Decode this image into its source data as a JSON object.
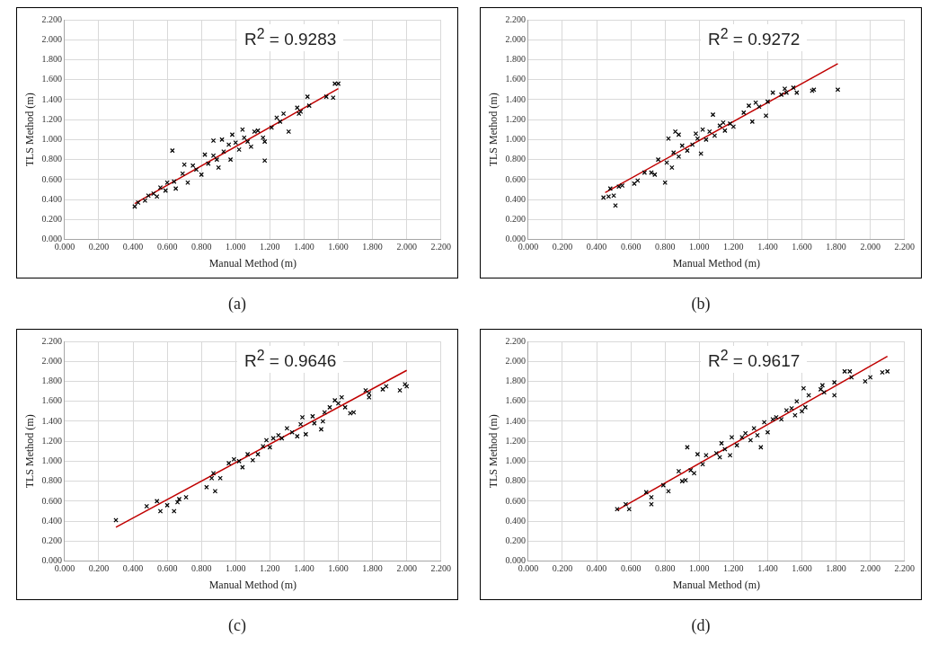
{
  "chart_data": [
    {
      "type": "scatter",
      "xlabel": "Manual Method (m)",
      "ylabel": "TLS Method (m)",
      "marker": "cross",
      "grid": true,
      "xlim": [
        0,
        2.2
      ],
      "ylim": [
        0,
        2.2
      ],
      "xticks": [
        {
          "value": 0,
          "label": "0.000"
        },
        {
          "value": 0.2,
          "label": "0.200"
        },
        {
          "value": 0.4,
          "label": "0.400"
        },
        {
          "value": 0.6,
          "label": "0.600"
        },
        {
          "value": 0.8,
          "label": "0.800"
        },
        {
          "value": 1,
          "label": "1.000"
        },
        {
          "value": 1.2,
          "label": "1.200"
        },
        {
          "value": 1.4,
          "label": "1.400"
        },
        {
          "value": 1.6,
          "label": "1.600"
        },
        {
          "value": 1.8,
          "label": "1.800"
        },
        {
          "value": 2,
          "label": "2.000"
        },
        {
          "value": 2.2,
          "label": "2.200"
        }
      ],
      "yticks": [
        {
          "value": 0,
          "label": "0.000"
        },
        {
          "value": 0.2,
          "label": "0.200"
        },
        {
          "value": 0.4,
          "label": "0.400"
        },
        {
          "value": 0.6,
          "label": "0.600"
        },
        {
          "value": 0.8,
          "label": "0.800"
        },
        {
          "value": 1,
          "label": "1.000"
        },
        {
          "value": 1.2,
          "label": "1.200"
        },
        {
          "value": 1.4,
          "label": "1.400"
        },
        {
          "value": 1.6,
          "label": "1.600"
        },
        {
          "value": 1.8,
          "label": "1.800"
        },
        {
          "value": 2,
          "label": "2.000"
        },
        {
          "value": 2.2,
          "label": "2.200"
        }
      ],
      "annotations": [
        "R$^{2}$ = 0.9283",
        "(a)"
      ],
      "series": [
        {
          "color": "#000000",
          "x": [
            0.41,
            0.43,
            0.47,
            0.49,
            0.52,
            0.54,
            0.56,
            0.59,
            0.6,
            0.63,
            0.64,
            0.65,
            0.69,
            0.7,
            0.72,
            0.75,
            0.77,
            0.8,
            0.82,
            0.84,
            0.87,
            0.87,
            0.89,
            0.9,
            0.92,
            0.93,
            0.96,
            0.97,
            0.98,
            1.0,
            1.02,
            1.04,
            1.05,
            1.07,
            1.09,
            1.11,
            1.13,
            1.16,
            1.17,
            1.17,
            1.21,
            1.24,
            1.26,
            1.28,
            1.31,
            1.36,
            1.37,
            1.38,
            1.42,
            1.43,
            1.53,
            1.57,
            1.58,
            1.6
          ],
          "values": [
            0.33,
            0.37,
            0.39,
            0.44,
            0.46,
            0.43,
            0.52,
            0.49,
            0.57,
            0.89,
            0.58,
            0.51,
            0.66,
            0.75,
            0.57,
            0.74,
            0.7,
            0.65,
            0.85,
            0.76,
            0.99,
            0.84,
            0.8,
            0.72,
            1.0,
            0.88,
            0.95,
            0.8,
            1.05,
            0.97,
            0.9,
            1.1,
            1.02,
            0.98,
            0.93,
            1.08,
            1.09,
            1.02,
            0.79,
            0.98,
            1.12,
            1.22,
            1.18,
            1.26,
            1.08,
            1.32,
            1.26,
            1.28,
            1.43,
            1.34,
            1.43,
            1.42,
            1.56,
            1.56
          ]
        },
        {
          "type": "line",
          "marker": "none",
          "color": "#c00000",
          "x": [
            0.41,
            1.6
          ],
          "values": [
            0.36,
            1.51
          ]
        }
      ]
    },
    {
      "type": "scatter",
      "xlabel": "Manual Method (m)",
      "ylabel": "TLS Method (m)",
      "marker": "cross",
      "grid": true,
      "xlim": [
        0,
        2.2
      ],
      "ylim": [
        0,
        2.2
      ],
      "xticks": [
        {
          "value": 0,
          "label": "0.000"
        },
        {
          "value": 0.2,
          "label": "0.200"
        },
        {
          "value": 0.4,
          "label": "0.400"
        },
        {
          "value": 0.6,
          "label": "0.600"
        },
        {
          "value": 0.8,
          "label": "0.800"
        },
        {
          "value": 1,
          "label": "1.000"
        },
        {
          "value": 1.2,
          "label": "1.200"
        },
        {
          "value": 1.4,
          "label": "1.400"
        },
        {
          "value": 1.6,
          "label": "1.600"
        },
        {
          "value": 1.8,
          "label": "1.800"
        },
        {
          "value": 2,
          "label": "2.000"
        },
        {
          "value": 2.2,
          "label": "2.200"
        }
      ],
      "yticks": [
        {
          "value": 0,
          "label": "0.000"
        },
        {
          "value": 0.2,
          "label": "0.200"
        },
        {
          "value": 0.4,
          "label": "0.400"
        },
        {
          "value": 0.6,
          "label": "0.600"
        },
        {
          "value": 0.8,
          "label": "0.800"
        },
        {
          "value": 1,
          "label": "1.000"
        },
        {
          "value": 1.2,
          "label": "1.200"
        },
        {
          "value": 1.4,
          "label": "1.400"
        },
        {
          "value": 1.6,
          "label": "1.600"
        },
        {
          "value": 1.8,
          "label": "1.800"
        },
        {
          "value": 2,
          "label": "2.000"
        },
        {
          "value": 2.2,
          "label": "2.200"
        }
      ],
      "annotations": [
        "R$^{2}$ = 0.9272",
        "(b)"
      ],
      "series": [
        {
          "color": "#000000",
          "x": [
            0.44,
            0.47,
            0.48,
            0.5,
            0.51,
            0.53,
            0.55,
            0.62,
            0.64,
            0.68,
            0.72,
            0.74,
            0.76,
            0.8,
            0.81,
            0.82,
            0.84,
            0.85,
            0.86,
            0.88,
            0.88,
            0.9,
            0.93,
            0.96,
            0.98,
            0.99,
            1.01,
            1.02,
            1.04,
            1.06,
            1.08,
            1.09,
            1.12,
            1.14,
            1.15,
            1.18,
            1.2,
            1.26,
            1.29,
            1.31,
            1.33,
            1.35,
            1.39,
            1.4,
            1.43,
            1.48,
            1.5,
            1.51,
            1.55,
            1.57,
            1.66,
            1.67,
            1.81
          ],
          "values": [
            0.42,
            0.43,
            0.51,
            0.44,
            0.34,
            0.53,
            0.54,
            0.56,
            0.59,
            0.67,
            0.67,
            0.65,
            0.8,
            0.57,
            0.77,
            1.01,
            0.72,
            0.87,
            1.08,
            1.05,
            0.83,
            0.94,
            0.89,
            0.95,
            1.06,
            1.01,
            0.86,
            1.1,
            1.0,
            1.08,
            1.25,
            1.04,
            1.14,
            1.17,
            1.09,
            1.16,
            1.13,
            1.27,
            1.34,
            1.18,
            1.37,
            1.33,
            1.24,
            1.38,
            1.47,
            1.45,
            1.51,
            1.47,
            1.52,
            1.47,
            1.49,
            1.5,
            1.5
          ]
        },
        {
          "type": "line",
          "marker": "none",
          "color": "#c00000",
          "x": [
            0.45,
            1.81
          ],
          "values": [
            0.47,
            1.76
          ]
        }
      ]
    },
    {
      "type": "scatter",
      "xlabel": "Manual Method (m)",
      "ylabel": "TLS Method (m)",
      "marker": "cross",
      "grid": true,
      "xlim": [
        0,
        2.2
      ],
      "ylim": [
        0,
        2.2
      ],
      "xticks": [
        {
          "value": 0,
          "label": "0.000"
        },
        {
          "value": 0.2,
          "label": "0.200"
        },
        {
          "value": 0.4,
          "label": "0.400"
        },
        {
          "value": 0.6,
          "label": "0.600"
        },
        {
          "value": 0.8,
          "label": "0.800"
        },
        {
          "value": 1,
          "label": "1.000"
        },
        {
          "value": 1.2,
          "label": "1.200"
        },
        {
          "value": 1.4,
          "label": "1.400"
        },
        {
          "value": 1.6,
          "label": "1.600"
        },
        {
          "value": 1.8,
          "label": "1.800"
        },
        {
          "value": 2,
          "label": "2.000"
        },
        {
          "value": 2.2,
          "label": "2.200"
        }
      ],
      "yticks": [
        {
          "value": 0,
          "label": "0.000"
        },
        {
          "value": 0.2,
          "label": "0.200"
        },
        {
          "value": 0.4,
          "label": "0.400"
        },
        {
          "value": 0.6,
          "label": "0.600"
        },
        {
          "value": 0.8,
          "label": "0.800"
        },
        {
          "value": 1,
          "label": "1.000"
        },
        {
          "value": 1.2,
          "label": "1.200"
        },
        {
          "value": 1.4,
          "label": "1.400"
        },
        {
          "value": 1.6,
          "label": "1.600"
        },
        {
          "value": 1.8,
          "label": "1.800"
        },
        {
          "value": 2,
          "label": "2.000"
        },
        {
          "value": 2.2,
          "label": "2.200"
        }
      ],
      "annotations": [
        "R$^{2}$ = 0.9646",
        "(c)"
      ],
      "series": [
        {
          "color": "#000000",
          "x": [
            0.3,
            0.48,
            0.54,
            0.56,
            0.6,
            0.64,
            0.66,
            0.67,
            0.71,
            0.83,
            0.86,
            0.87,
            0.88,
            0.91,
            0.96,
            0.99,
            1.02,
            1.04,
            1.07,
            1.1,
            1.13,
            1.16,
            1.18,
            1.2,
            1.22,
            1.25,
            1.27,
            1.3,
            1.33,
            1.36,
            1.38,
            1.39,
            1.41,
            1.45,
            1.46,
            1.5,
            1.51,
            1.52,
            1.55,
            1.58,
            1.6,
            1.62,
            1.64,
            1.67,
            1.69,
            1.76,
            1.78,
            1.78,
            1.86,
            1.88,
            1.96,
            1.99,
            2.0
          ],
          "values": [
            0.41,
            0.55,
            0.6,
            0.5,
            0.56,
            0.5,
            0.59,
            0.62,
            0.64,
            0.74,
            0.83,
            0.88,
            0.7,
            0.83,
            0.98,
            1.02,
            1.0,
            0.94,
            1.07,
            1.01,
            1.07,
            1.15,
            1.21,
            1.14,
            1.23,
            1.26,
            1.23,
            1.33,
            1.29,
            1.25,
            1.37,
            1.44,
            1.27,
            1.45,
            1.38,
            1.32,
            1.4,
            1.49,
            1.54,
            1.61,
            1.58,
            1.64,
            1.54,
            1.48,
            1.49,
            1.71,
            1.64,
            1.68,
            1.72,
            1.75,
            1.71,
            1.77,
            1.75
          ]
        },
        {
          "type": "line",
          "marker": "none",
          "color": "#c00000",
          "x": [
            0.3,
            2.0
          ],
          "values": [
            0.34,
            1.91
          ]
        }
      ]
    },
    {
      "type": "scatter",
      "xlabel": "Manual Method (m)",
      "ylabel": "TLS Method (m)",
      "marker": "cross",
      "grid": true,
      "xlim": [
        0,
        2.2
      ],
      "ylim": [
        0,
        2.2
      ],
      "xticks": [
        {
          "value": 0,
          "label": "0.000"
        },
        {
          "value": 0.2,
          "label": "0.200"
        },
        {
          "value": 0.4,
          "label": "0.400"
        },
        {
          "value": 0.6,
          "label": "0.600"
        },
        {
          "value": 0.8,
          "label": "0.800"
        },
        {
          "value": 1,
          "label": "1.000"
        },
        {
          "value": 1.2,
          "label": "1.200"
        },
        {
          "value": 1.4,
          "label": "1.400"
        },
        {
          "value": 1.6,
          "label": "1.600"
        },
        {
          "value": 1.8,
          "label": "1.800"
        },
        {
          "value": 2,
          "label": "2.000"
        },
        {
          "value": 2.2,
          "label": "2.200"
        }
      ],
      "yticks": [
        {
          "value": 0,
          "label": "0.000"
        },
        {
          "value": 0.2,
          "label": "0.200"
        },
        {
          "value": 0.4,
          "label": "0.400"
        },
        {
          "value": 0.6,
          "label": "0.600"
        },
        {
          "value": 0.8,
          "label": "0.800"
        },
        {
          "value": 1,
          "label": "1.000"
        },
        {
          "value": 1.2,
          "label": "1.200"
        },
        {
          "value": 1.4,
          "label": "1.400"
        },
        {
          "value": 1.6,
          "label": "1.600"
        },
        {
          "value": 1.8,
          "label": "1.800"
        },
        {
          "value": 2,
          "label": "2.000"
        },
        {
          "value": 2.2,
          "label": "2.200"
        }
      ],
      "annotations": [
        "R$^{2}$ = 0.9617",
        "(d)"
      ],
      "series": [
        {
          "color": "#000000",
          "x": [
            0.52,
            0.57,
            0.59,
            0.69,
            0.72,
            0.72,
            0.79,
            0.82,
            0.88,
            0.9,
            0.92,
            0.93,
            0.95,
            0.97,
            0.99,
            1.02,
            1.04,
            1.1,
            1.12,
            1.13,
            1.15,
            1.18,
            1.19,
            1.22,
            1.25,
            1.27,
            1.3,
            1.32,
            1.34,
            1.36,
            1.38,
            1.4,
            1.43,
            1.45,
            1.48,
            1.51,
            1.54,
            1.56,
            1.57,
            1.6,
            1.61,
            1.62,
            1.64,
            1.71,
            1.72,
            1.73,
            1.79,
            1.79,
            1.85,
            1.88,
            1.89,
            1.97,
            2.0,
            2.07,
            2.1
          ],
          "values": [
            0.52,
            0.57,
            0.52,
            0.69,
            0.57,
            0.64,
            0.76,
            0.7,
            0.9,
            0.8,
            0.81,
            1.14,
            0.91,
            0.88,
            1.07,
            0.97,
            1.06,
            1.08,
            1.04,
            1.18,
            1.12,
            1.06,
            1.24,
            1.16,
            1.24,
            1.28,
            1.21,
            1.33,
            1.26,
            1.14,
            1.39,
            1.29,
            1.42,
            1.44,
            1.42,
            1.51,
            1.53,
            1.46,
            1.6,
            1.5,
            1.73,
            1.54,
            1.66,
            1.72,
            1.76,
            1.69,
            1.79,
            1.66,
            1.9,
            1.9,
            1.84,
            1.8,
            1.84,
            1.89,
            1.9
          ]
        },
        {
          "type": "line",
          "marker": "none",
          "color": "#c00000",
          "x": [
            0.52,
            2.1
          ],
          "values": [
            0.51,
            2.05
          ]
        }
      ]
    }
  ]
}
